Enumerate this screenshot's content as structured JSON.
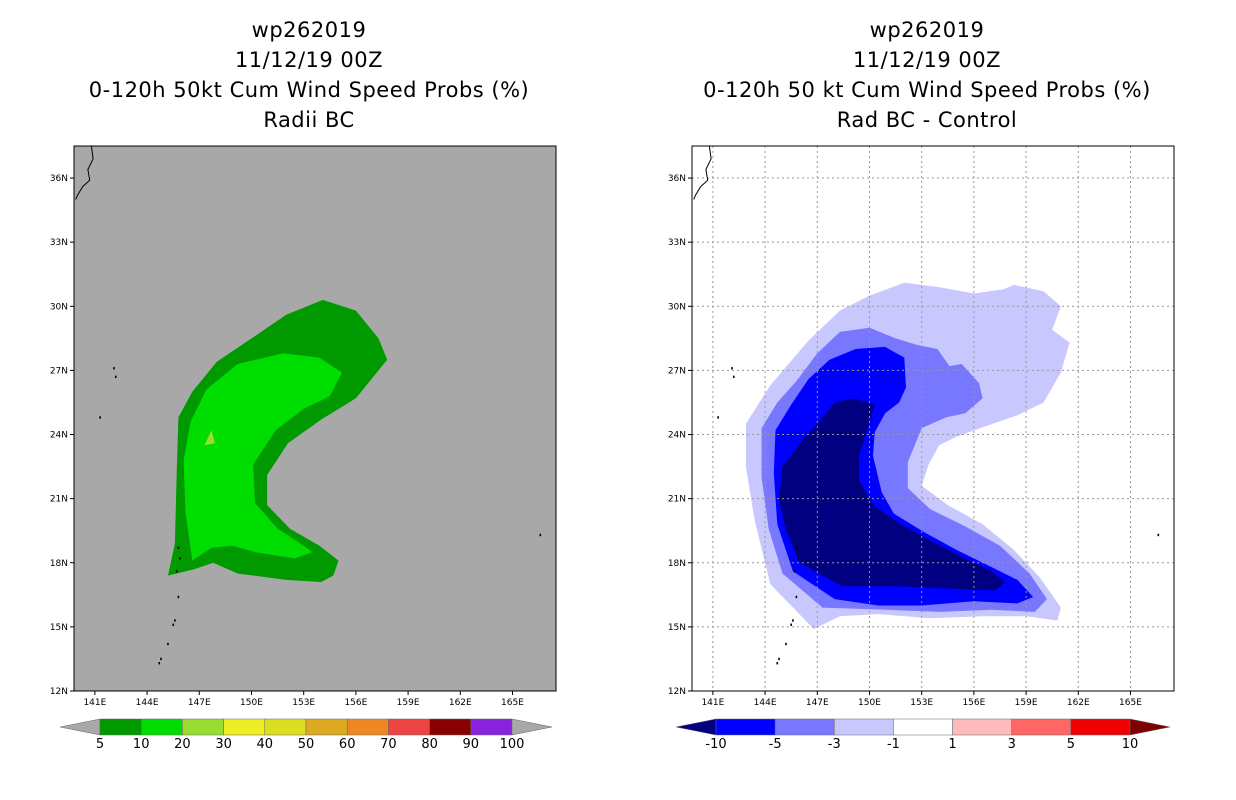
{
  "panels": [
    {
      "id": "left",
      "title_lines": [
        "wp262019",
        "11/12/19 00Z",
        "0-120h 50kt Cum Wind Speed Probs (%)",
        "Radii BC"
      ],
      "background": "#a8a8a8",
      "grid": false
    },
    {
      "id": "right",
      "title_lines": [
        "wp262019",
        "11/12/19 00Z",
        "0-120h 50 kt Cum Wind Speed Probs (%)",
        "Rad BC - Control"
      ],
      "background": "#ffffff",
      "grid": true
    }
  ],
  "chart_data": [
    {
      "type": "heatmap",
      "title": "0-120h 50kt Cum Wind Speed Probs (%) - Radii BC",
      "storm": "wp262019",
      "date": "11/12/19 00Z",
      "x_ticks": [
        "141E",
        "144E",
        "147E",
        "150E",
        "153E",
        "156E",
        "159E",
        "162E",
        "165E"
      ],
      "y_ticks": [
        "12N",
        "15N",
        "18N",
        "21N",
        "24N",
        "27N",
        "30N",
        "33N",
        "36N"
      ],
      "xlim": [
        139.8,
        167.5
      ],
      "ylim": [
        12,
        37.5
      ],
      "colorbar": {
        "labels": [
          "5",
          "10",
          "20",
          "30",
          "40",
          "50",
          "60",
          "70",
          "80",
          "90",
          "100"
        ],
        "colors": [
          "#009900",
          "#00dd00",
          "#99dd33",
          "#eeee22",
          "#dddd22",
          "#ddaa22",
          "#ee8822",
          "#ee4444",
          "#880000",
          "#8822dd"
        ],
        "low_color": "#a8a8a8",
        "high_color": "#a8a8a8"
      },
      "contours": [
        {
          "level": "5",
          "color": "#009900",
          "points": [
            [
              145.2,
              17.4
            ],
            [
              145.6,
              18.9
            ],
            [
              145.7,
              22.2
            ],
            [
              145.8,
              24.8
            ],
            [
              146.6,
              26.0
            ],
            [
              148.0,
              27.4
            ],
            [
              150.0,
              28.5
            ],
            [
              152.0,
              29.6
            ],
            [
              154.1,
              30.3
            ],
            [
              156.0,
              29.8
            ],
            [
              157.3,
              28.5
            ],
            [
              157.8,
              27.5
            ],
            [
              157.0,
              26.7
            ],
            [
              156.0,
              25.7
            ],
            [
              154.0,
              24.7
            ],
            [
              152.1,
              23.6
            ],
            [
              150.9,
              22.1
            ],
            [
              150.9,
              20.7
            ],
            [
              152.2,
              19.6
            ],
            [
              153.9,
              18.8
            ],
            [
              155.0,
              18.1
            ],
            [
              154.7,
              17.4
            ],
            [
              154.0,
              17.1
            ],
            [
              152.0,
              17.2
            ],
            [
              149.2,
              17.5
            ],
            [
              147.8,
              18.0
            ],
            [
              146.7,
              17.7
            ]
          ]
        },
        {
          "level": "10",
          "color": "#00dd00",
          "points": [
            [
              146.6,
              18.1
            ],
            [
              146.2,
              20.4
            ],
            [
              146.1,
              22.8
            ],
            [
              146.5,
              24.6
            ],
            [
              147.4,
              26.1
            ],
            [
              149.2,
              27.3
            ],
            [
              151.8,
              27.8
            ],
            [
              153.9,
              27.6
            ],
            [
              155.2,
              26.9
            ],
            [
              154.5,
              25.8
            ],
            [
              153.0,
              25.2
            ],
            [
              151.4,
              24.2
            ],
            [
              150.1,
              22.6
            ],
            [
              150.2,
              20.8
            ],
            [
              151.5,
              19.6
            ],
            [
              153.0,
              18.8
            ],
            [
              153.5,
              18.5
            ],
            [
              152.5,
              18.2
            ],
            [
              150.2,
              18.5
            ],
            [
              148.9,
              18.8
            ],
            [
              147.7,
              18.7
            ]
          ]
        },
        {
          "level": "20",
          "color": "#99dd33",
          "points": [
            [
              147.3,
              23.5
            ],
            [
              147.7,
              24.2
            ],
            [
              147.9,
              23.6
            ]
          ]
        }
      ]
    },
    {
      "type": "heatmap",
      "title": "0-120h 50 kt Cum Wind Speed Probs (%) - Rad BC - Control",
      "storm": "wp262019",
      "date": "11/12/19 00Z",
      "x_ticks": [
        "141E",
        "144E",
        "147E",
        "150E",
        "153E",
        "156E",
        "159E",
        "162E",
        "165E"
      ],
      "y_ticks": [
        "12N",
        "15N",
        "18N",
        "21N",
        "24N",
        "27N",
        "30N",
        "33N",
        "36N"
      ],
      "xlim": [
        139.8,
        167.5
      ],
      "ylim": [
        12,
        37.5
      ],
      "colorbar": {
        "labels": [
          "-10",
          "-5",
          "-3",
          "-1",
          "1",
          "3",
          "5",
          "10"
        ],
        "colors": [
          "#0000ff",
          "#7777ff",
          "#c8c8ff",
          "#ffffff",
          "#ffbbbb",
          "#ff6666",
          "#ee0000"
        ],
        "low_color": "#000080",
        "high_color": "#800000"
      },
      "contours": [
        {
          "level": "-1",
          "color": "#c8c8ff",
          "points": [
            [
              146.8,
              14.9
            ],
            [
              144.3,
              17.0
            ],
            [
              143.4,
              20.0
            ],
            [
              142.9,
              22.5
            ],
            [
              142.9,
              24.5
            ],
            [
              144.3,
              26.3
            ],
            [
              146.5,
              28.4
            ],
            [
              148.3,
              29.8
            ],
            [
              150.0,
              30.5
            ],
            [
              152.0,
              31.1
            ],
            [
              154.0,
              30.9
            ],
            [
              156.0,
              30.6
            ],
            [
              157.7,
              30.8
            ],
            [
              158.3,
              31.0
            ],
            [
              160.0,
              30.7
            ],
            [
              161.0,
              30.0
            ],
            [
              160.5,
              28.9
            ],
            [
              161.5,
              28.3
            ],
            [
              161.0,
              26.9
            ],
            [
              160.0,
              25.5
            ],
            [
              158.5,
              24.9
            ],
            [
              156.7,
              24.4
            ],
            [
              155.0,
              23.9
            ],
            [
              154.0,
              23.5
            ],
            [
              153.4,
              22.6
            ],
            [
              153.0,
              21.6
            ],
            [
              154.5,
              20.7
            ],
            [
              156.5,
              19.8
            ],
            [
              158.3,
              18.6
            ],
            [
              159.8,
              17.3
            ],
            [
              161.0,
              15.9
            ],
            [
              160.8,
              15.3
            ],
            [
              159.0,
              15.5
            ],
            [
              156.5,
              15.5
            ],
            [
              153.5,
              15.4
            ],
            [
              150.5,
              15.6
            ],
            [
              148.3,
              15.5
            ]
          ]
        },
        {
          "level": "-3",
          "color": "#7777ff",
          "points": [
            [
              147.3,
              15.9
            ],
            [
              145.0,
              17.5
            ],
            [
              144.2,
              19.6
            ],
            [
              143.8,
              22.0
            ],
            [
              143.8,
              24.3
            ],
            [
              144.7,
              25.5
            ],
            [
              145.8,
              26.5
            ],
            [
              147.0,
              27.8
            ],
            [
              148.3,
              28.8
            ],
            [
              150.0,
              29.0
            ],
            [
              151.5,
              28.5
            ],
            [
              152.7,
              28.2
            ],
            [
              153.9,
              28.0
            ],
            [
              154.6,
              27.2
            ],
            [
              155.3,
              27.3
            ],
            [
              156.3,
              26.4
            ],
            [
              156.5,
              25.7
            ],
            [
              155.5,
              25.0
            ],
            [
              154.4,
              24.8
            ],
            [
              153.0,
              24.3
            ],
            [
              152.2,
              22.7
            ],
            [
              152.2,
              21.5
            ],
            [
              153.5,
              20.5
            ],
            [
              155.5,
              19.7
            ],
            [
              157.5,
              18.8
            ],
            [
              159.2,
              17.5
            ],
            [
              160.2,
              16.3
            ],
            [
              159.5,
              15.7
            ],
            [
              157.0,
              15.8
            ],
            [
              154.0,
              15.7
            ],
            [
              151.0,
              15.8
            ]
          ]
        },
        {
          "level": "-5",
          "color": "#0000ff",
          "points": [
            [
              148.0,
              16.3
            ],
            [
              145.6,
              17.6
            ],
            [
              144.7,
              19.8
            ],
            [
              144.5,
              22.2
            ],
            [
              144.6,
              24.2
            ],
            [
              145.5,
              25.4
            ],
            [
              146.5,
              26.6
            ],
            [
              147.7,
              27.5
            ],
            [
              149.2,
              28.0
            ],
            [
              150.9,
              28.1
            ],
            [
              152.0,
              27.6
            ],
            [
              152.1,
              26.2
            ],
            [
              151.7,
              25.5
            ],
            [
              150.9,
              25.0
            ],
            [
              150.3,
              24.1
            ],
            [
              150.2,
              23.0
            ],
            [
              150.7,
              21.3
            ],
            [
              151.4,
              20.3
            ],
            [
              153.2,
              19.4
            ],
            [
              155.0,
              18.6
            ],
            [
              157.0,
              17.8
            ],
            [
              158.5,
              17.2
            ],
            [
              159.4,
              16.4
            ],
            [
              158.5,
              16.1
            ],
            [
              156.0,
              16.2
            ],
            [
              153.0,
              16.0
            ],
            [
              150.5,
              16.0
            ]
          ]
        },
        {
          "level": "-10",
          "color": "#000080",
          "points": [
            [
              148.4,
              16.9
            ],
            [
              146.0,
              18.0
            ],
            [
              145.2,
              19.5
            ],
            [
              144.8,
              21.0
            ],
            [
              145.0,
              22.5
            ],
            [
              146.2,
              23.8
            ],
            [
              147.2,
              24.7
            ],
            [
              148.0,
              25.5
            ],
            [
              149.1,
              25.7
            ],
            [
              150.3,
              25.4
            ],
            [
              149.9,
              24.3
            ],
            [
              149.4,
              23.0
            ],
            [
              149.4,
              21.9
            ],
            [
              150.2,
              20.7
            ],
            [
              151.8,
              19.8
            ],
            [
              153.6,
              19.0
            ],
            [
              155.5,
              18.2
            ],
            [
              157.0,
              17.6
            ],
            [
              157.8,
              17.1
            ],
            [
              157.2,
              16.7
            ],
            [
              154.5,
              16.8
            ],
            [
              151.5,
              16.9
            ]
          ]
        }
      ]
    }
  ]
}
